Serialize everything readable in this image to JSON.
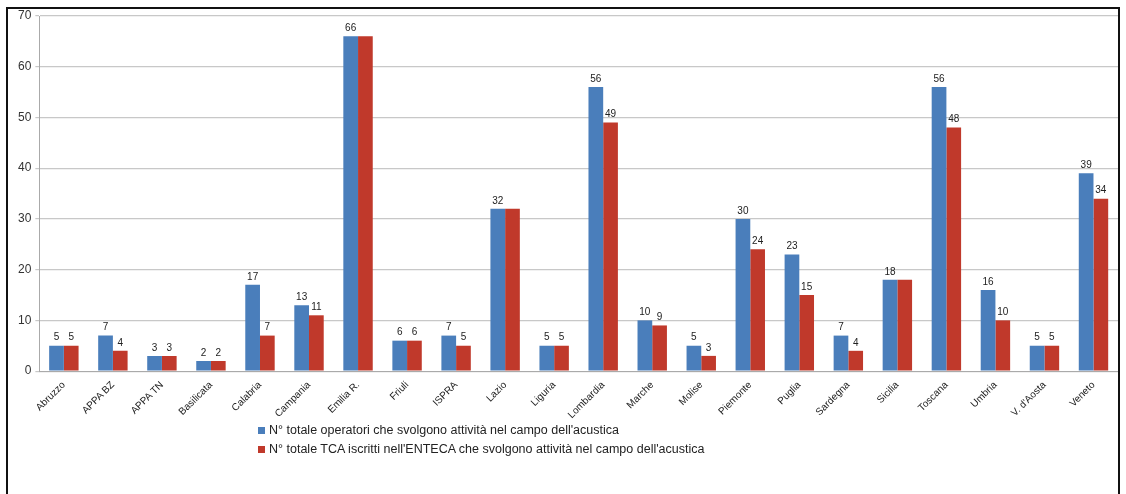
{
  "chart_data": {
    "type": "bar",
    "categories": [
      "Abruzzo",
      "APPA BZ",
      "APPA TN",
      "Basilicata",
      "Calabria",
      "Campania",
      "Emilia R.",
      "Friuli",
      "ISPRA",
      "Lazio",
      "Liguria",
      "Lombardia",
      "Marche",
      "Molise",
      "Piemonte",
      "Puglia",
      "Sardegna",
      "Sicilia",
      "Toscana",
      "Umbria",
      "V. d'Aosta",
      "Veneto"
    ],
    "series": [
      {
        "name": "N° totale operatori che svolgono attività nel campo dell'acustica",
        "color": "#4a7ebb",
        "values": [
          5,
          7,
          3,
          2,
          17,
          13,
          66,
          6,
          7,
          32,
          5,
          56,
          10,
          5,
          30,
          23,
          7,
          18,
          56,
          16,
          5,
          39
        ],
        "value_labels": [
          "5",
          "7",
          "3",
          "2",
          "17",
          "13",
          "66",
          "6",
          "7",
          "32",
          "5",
          "56",
          "10",
          "5",
          "30",
          "23",
          "7",
          "18",
          "56",
          "16",
          "5",
          "39"
        ]
      },
      {
        "name": "N° totale TCA iscritti nell'ENTECA che svolgono attività nel campo dell'acustica",
        "color": "#c0392b",
        "values": [
          5,
          4,
          3,
          2,
          7,
          11,
          66,
          6,
          5,
          32,
          5,
          49,
          9,
          3,
          24,
          15,
          4,
          18,
          48,
          10,
          5,
          34
        ],
        "value_labels": [
          "5",
          "4",
          "3",
          "2",
          "7",
          "11",
          null,
          "6",
          "5",
          null,
          "5",
          "49",
          "9",
          "3",
          "24",
          "15",
          "4",
          null,
          "48",
          "10",
          "5",
          "34"
        ]
      }
    ],
    "ylim": [
      0,
      70
    ],
    "yticks": [
      0,
      10,
      20,
      30,
      40,
      50,
      60,
      70
    ],
    "grid": "y",
    "legend": "bottom"
  }
}
